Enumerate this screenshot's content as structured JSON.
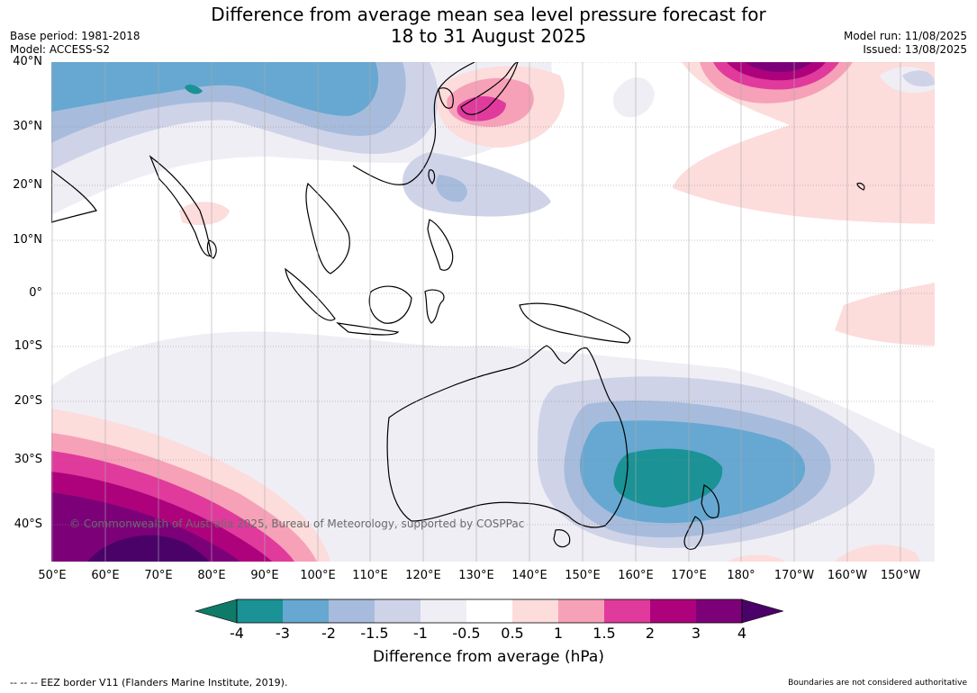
{
  "header": {
    "title_line1": "Difference from average mean sea level pressure forecast for",
    "title_line2": "18 to 31 August 2025",
    "base_period": "Base period: 1981-2018",
    "model": "Model: ACCESS-S2",
    "model_run": "Model run: 11/08/2025",
    "issued": "Issued: 13/08/2025"
  },
  "map": {
    "lat_labels": [
      "40°N",
      "30°N",
      "20°N",
      "10°N",
      "0°",
      "10°S",
      "20°S",
      "30°S",
      "40°S"
    ],
    "lon_labels": [
      "50°E",
      "60°E",
      "70°E",
      "80°E",
      "90°E",
      "100°E",
      "110°E",
      "120°E",
      "130°E",
      "140°E",
      "150°E",
      "160°E",
      "170°E",
      "180°",
      "170°W",
      "160°W",
      "150°W"
    ],
    "copyright": "© Commonwealth of Australia 2025, Bureau of Meteorology, supported by COSPPac"
  },
  "colorbar": {
    "ticks": [
      "-4",
      "-3",
      "-2",
      "-1.5",
      "-1",
      "-0.5",
      "0.5",
      "1",
      "1.5",
      "2",
      "3",
      "4"
    ],
    "colors": [
      "#0f7a68",
      "#1b9296",
      "#66a8d1",
      "#a7bcdc",
      "#cfd3e8",
      "#f0eef5",
      "#ffffff",
      "#fddcdc",
      "#f6a1b8",
      "#e03a9c",
      "#ae027d",
      "#7c0179",
      "#4a0268"
    ],
    "label": "Difference from average (hPa)"
  },
  "footer": {
    "eez_note": "--  --  -- EEZ border V11 (Flanders Marine Institute, 2019).",
    "boundaries_note": "Boundaries are not considered authoritative"
  }
}
